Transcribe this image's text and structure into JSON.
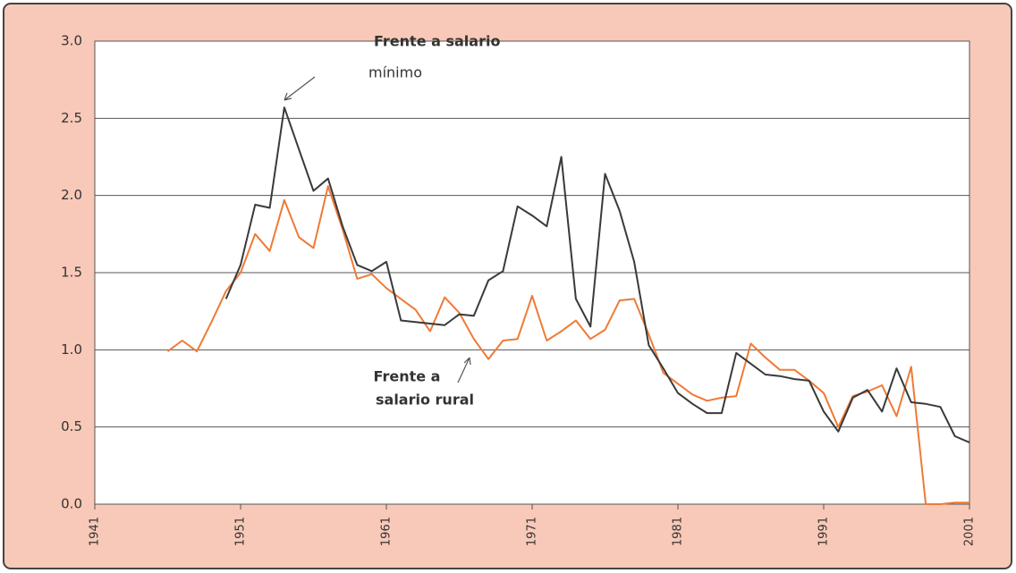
{
  "chart_data": {
    "type": "line",
    "annotations": [
      "Frente a salario",
      "mínimo",
      "Frente a",
      "salario rural"
    ],
    "x": [
      1946,
      1947,
      1948,
      1949,
      1950,
      1951,
      1952,
      1953,
      1954,
      1955,
      1956,
      1957,
      1958,
      1959,
      1960,
      1961,
      1962,
      1963,
      1964,
      1965,
      1966,
      1967,
      1968,
      1969,
      1970,
      1971,
      1972,
      1973,
      1974,
      1975,
      1976,
      1977,
      1978,
      1979,
      1980,
      1981,
      1982,
      1983,
      1984,
      1985,
      1986,
      1987,
      1988,
      1989,
      1990,
      1991,
      1992,
      1993,
      1994,
      1995,
      1996,
      1997,
      1998,
      1999,
      2000,
      2001
    ],
    "series": [
      {
        "name": "Frente a salario mínimo",
        "color": "#3a3a3a",
        "values": [
          null,
          null,
          null,
          null,
          1.33,
          1.55,
          1.94,
          1.92,
          2.57,
          2.3,
          2.03,
          2.11,
          1.8,
          1.55,
          1.51,
          1.57,
          1.19,
          1.18,
          1.17,
          1.16,
          1.23,
          1.22,
          1.45,
          1.51,
          1.93,
          1.87,
          1.8,
          2.25,
          1.33,
          1.15,
          2.14,
          1.9,
          1.57,
          1.03,
          0.88,
          0.72,
          0.65,
          0.59,
          0.59,
          0.98,
          0.91,
          0.84,
          0.83,
          0.81,
          0.8,
          0.6,
          0.47,
          0.69,
          0.74,
          0.6,
          0.88,
          0.66,
          0.65,
          0.63,
          0.44,
          0.4
        ]
      },
      {
        "name": "Frente a salario rural",
        "color": "#ef7a35",
        "values": [
          0.99,
          1.06,
          0.99,
          1.18,
          1.38,
          1.5,
          1.75,
          1.64,
          1.97,
          1.73,
          1.66,
          2.06,
          1.78,
          1.46,
          1.49,
          1.4,
          1.33,
          1.26,
          1.12,
          1.34,
          1.24,
          1.07,
          0.94,
          1.06,
          1.07,
          1.35,
          1.06,
          1.12,
          1.19,
          1.07,
          1.13,
          1.32,
          1.33,
          1.1,
          0.85,
          0.78,
          0.71,
          0.67,
          0.69,
          0.7,
          1.04,
          0.95,
          0.87,
          0.87,
          0.8,
          0.72,
          0.5,
          0.7,
          0.73,
          0.77,
          0.57,
          0.89,
          0.0,
          0.0,
          0.01,
          0.01
        ]
      }
    ],
    "xlim": [
      1941,
      2001
    ],
    "xticks": [
      1941,
      1951,
      1961,
      1971,
      1981,
      1991,
      2001
    ],
    "ylim": [
      0,
      3
    ],
    "yticks": [
      {
        "value": 0,
        "label": "0.0"
      },
      0.5,
      {
        "value": 1,
        "label": "1.0"
      },
      1.5,
      {
        "value": 2,
        "label": "2.0"
      },
      2.5,
      {
        "value": 3,
        "label": "3.0"
      }
    ],
    "grid": true
  }
}
